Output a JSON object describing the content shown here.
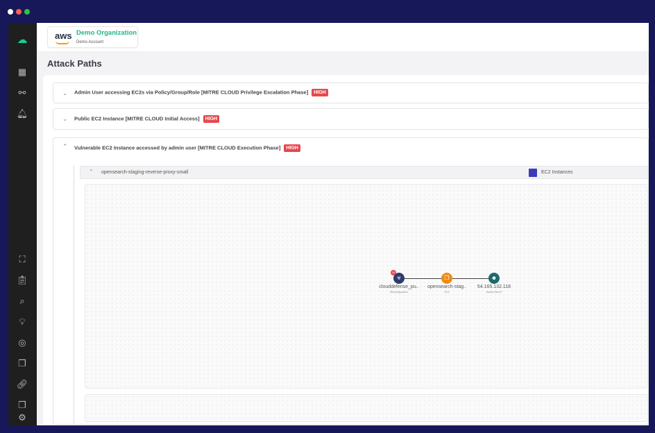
{
  "header": {
    "org_name": "Demo Organization",
    "account": "Demo Account",
    "provider_logo": "aws"
  },
  "page": {
    "title": "Attack Paths"
  },
  "attack_paths": [
    {
      "label": "Admin User accessing EC2s via Policy/Group/Role [MITRE CLOUD Privilege Escalation Phase]",
      "severity": "HIGH",
      "expanded": false
    },
    {
      "label": "Public EC2 Instance [MITRE CLOUD Initial Access]",
      "severity": "HIGH",
      "expanded": false
    },
    {
      "label": "Vulnerable EC2 Instance accessed by admin user [MITRE CLOUD Execution Phase]",
      "severity": "HIGH",
      "expanded": true
    }
  ],
  "resource": {
    "name": "opensearch-staging-reverse-proxy-small",
    "type": "EC2 Instances"
  },
  "graph": {
    "nodes": [
      {
        "label": "clouddefense_pu..",
        "sublabel": "Misconfiguration",
        "icon": "biohazard-icon",
        "color": "#2f3a6b",
        "badge": "10"
      },
      {
        "label": "opensearch-stag..",
        "sublabel": "EC2",
        "icon": "ec2-icon",
        "color": "#f08a12"
      },
      {
        "label": "54.165.132.118",
        "sublabel": "HackerView IP",
        "icon": "hacker-icon",
        "color": "#1d6b6e"
      }
    ]
  },
  "colors": {
    "severity_high": "#e5484d",
    "brand": "#1fb48a",
    "sidebar": "#1f1f1f"
  }
}
